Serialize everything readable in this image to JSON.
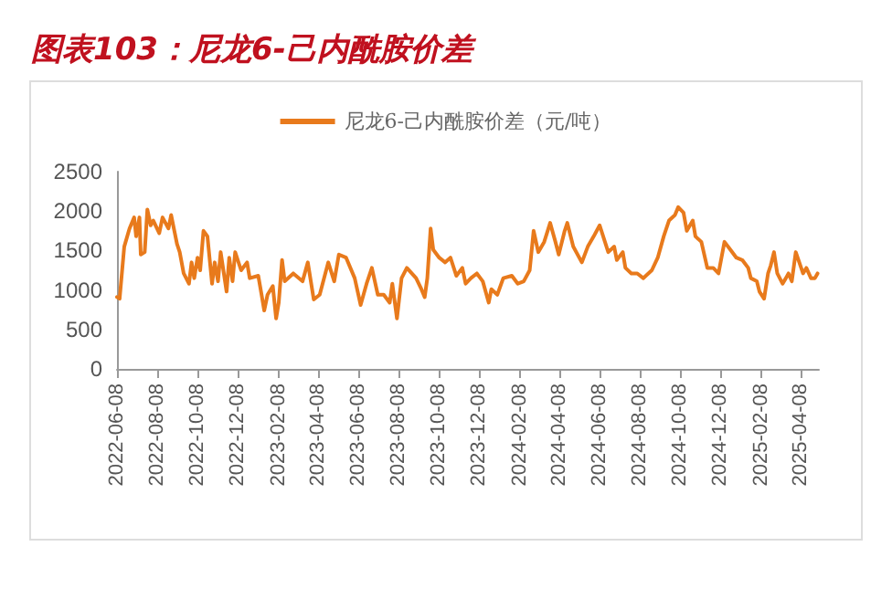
{
  "chart_data": {
    "type": "line",
    "title": "图表103：尼龙6-己内酰胺价差",
    "x": [
      "2022-06-08",
      "2022-06-12",
      "2022-06-19",
      "2022-06-27",
      "2022-07-04",
      "2022-07-07",
      "2022-07-12",
      "2022-07-14",
      "2022-07-20",
      "2022-07-24",
      "2022-07-29",
      "2022-08-02",
      "2022-08-11",
      "2022-08-16",
      "2022-08-25",
      "2022-08-29",
      "2022-09-07",
      "2022-09-11",
      "2022-09-17",
      "2022-09-25",
      "2022-09-29",
      "2022-10-03",
      "2022-10-08",
      "2022-10-12",
      "2022-10-17",
      "2022-10-23",
      "2022-10-30",
      "2022-11-03",
      "2022-11-08",
      "2022-11-12",
      "2022-11-21",
      "2022-11-25",
      "2022-11-30",
      "2022-12-04",
      "2022-12-13",
      "2022-12-22",
      "2022-12-26",
      "2023-01-08",
      "2023-01-13",
      "2023-01-17",
      "2023-01-22",
      "2023-01-30",
      "2023-02-04",
      "2023-02-08",
      "2023-02-13",
      "2023-02-17",
      "2023-03-02",
      "2023-03-16",
      "2023-03-24",
      "2023-04-02",
      "2023-04-11",
      "2023-04-24",
      "2023-05-03",
      "2023-05-10",
      "2023-05-21",
      "2023-06-03",
      "2023-06-12",
      "2023-06-21",
      "2023-06-29",
      "2023-07-08",
      "2023-07-17",
      "2023-07-26",
      "2023-07-30",
      "2023-08-06",
      "2023-08-13",
      "2023-08-21",
      "2023-09-04",
      "2023-09-12",
      "2023-09-17",
      "2023-09-21",
      "2023-09-26",
      "2023-09-30",
      "2023-10-09",
      "2023-10-18",
      "2023-10-26",
      "2023-11-04",
      "2023-11-13",
      "2023-11-18",
      "2023-11-26",
      "2023-12-05",
      "2023-12-14",
      "2023-12-23",
      "2023-12-27",
      "2024-01-05",
      "2024-01-14",
      "2024-01-27",
      "2024-02-05",
      "2024-02-14",
      "2024-02-23",
      "2024-02-29",
      "2024-03-07",
      "2024-03-16",
      "2024-03-25",
      "2024-04-02",
      "2024-04-07",
      "2024-04-16",
      "2024-04-20",
      "2024-04-29",
      "2024-05-12",
      "2024-05-21",
      "2024-05-30",
      "2024-06-08",
      "2024-06-16",
      "2024-06-21",
      "2024-06-30",
      "2024-07-04",
      "2024-07-13",
      "2024-07-17",
      "2024-07-26",
      "2024-08-04",
      "2024-08-13",
      "2024-08-17",
      "2024-08-26",
      "2024-09-04",
      "2024-09-13",
      "2024-09-21",
      "2024-09-30",
      "2024-10-05",
      "2024-10-13",
      "2024-10-18",
      "2024-10-27",
      "2024-10-31",
      "2024-11-09",
      "2024-11-18",
      "2024-11-27",
      "2024-12-05",
      "2024-12-14",
      "2024-12-23",
      "2025-01-01",
      "2025-01-10",
      "2025-01-19",
      "2025-01-23",
      "2025-02-01",
      "2025-02-05",
      "2025-02-12",
      "2025-02-18",
      "2025-02-22",
      "2025-02-27",
      "2025-03-04",
      "2025-03-12",
      "2025-03-17",
      "2025-03-21",
      "2025-03-26",
      "2025-04-01",
      "2025-04-08",
      "2025-04-12",
      "2025-04-17",
      "2025-04-24",
      "2025-04-30",
      "2025-05-04"
    ],
    "series": [
      {
        "name": "尼龙6-己内酰胺价差（元/吨）",
        "color": "#e87a1c",
        "values": [
          910,
          890,
          1550,
          1780,
          1920,
          1680,
          1920,
          1450,
          1480,
          2020,
          1820,
          1880,
          1720,
          1920,
          1780,
          1950,
          1580,
          1480,
          1210,
          1080,
          1350,
          1150,
          1410,
          1250,
          1750,
          1680,
          1080,
          1350,
          1110,
          1480,
          980,
          1410,
          1110,
          1480,
          1250,
          1350,
          1150,
          1180,
          940,
          740,
          940,
          1050,
          640,
          840,
          1380,
          1110,
          1210,
          1110,
          1350,
          880,
          940,
          1350,
          1110,
          1450,
          1410,
          1150,
          810,
          1080,
          1280,
          940,
          940,
          840,
          1080,
          640,
          1150,
          1280,
          1150,
          1010,
          910,
          1150,
          1780,
          1510,
          1410,
          1350,
          1410,
          1180,
          1280,
          1080,
          1150,
          1210,
          1110,
          840,
          1010,
          940,
          1150,
          1180,
          1080,
          1110,
          1250,
          1750,
          1480,
          1610,
          1850,
          1610,
          1450,
          1750,
          1850,
          1550,
          1350,
          1550,
          1680,
          1820,
          1610,
          1480,
          1550,
          1380,
          1480,
          1280,
          1210,
          1210,
          1150,
          1180,
          1250,
          1410,
          1680,
          1880,
          1950,
          2050,
          1980,
          1750,
          1880,
          1680,
          1610,
          1280,
          1280,
          1210,
          1610,
          1510,
          1410,
          1380,
          1280,
          1150,
          1110,
          980,
          890,
          1210,
          1310,
          1480,
          1210,
          1080,
          1150,
          1210,
          1110,
          1480,
          1310,
          1210,
          1280,
          1150,
          1150,
          1210
        ]
      }
    ],
    "xlim": [
      "2022-06-08",
      "2025-05-06"
    ],
    "xticks": [
      "2022-06-08",
      "2022-08-08",
      "2022-10-08",
      "2022-12-08",
      "2023-02-08",
      "2023-04-08",
      "2023-06-08",
      "2023-08-08",
      "2023-10-08",
      "2023-12-08",
      "2024-02-08",
      "2024-04-08",
      "2024-06-08",
      "2024-08-08",
      "2024-10-08",
      "2024-12-08",
      "2025-02-08",
      "2025-04-08"
    ],
    "ylim": [
      0,
      2500
    ],
    "yticks": [
      0,
      500,
      1000,
      1500,
      2000,
      2500
    ],
    "grid": false,
    "legend": "top",
    "marker": "none",
    "line_style": "solid"
  }
}
